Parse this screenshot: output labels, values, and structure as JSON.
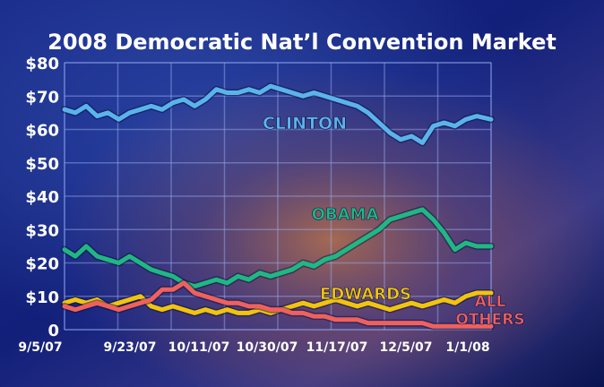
{
  "chart_data": {
    "type": "line",
    "title": "2008 Democratic Nat’l Convention Market",
    "xlabel": "",
    "ylabel": "",
    "ylim": [
      0,
      80
    ],
    "y_ticks": [
      "$80",
      "$70",
      "$60",
      "$50",
      "$40",
      "$30",
      "$20",
      "$10",
      "0"
    ],
    "x_ticks": [
      "9/5/07",
      "9/23/07",
      "10/11/07",
      "10/30/07",
      "11/17/07",
      "12/5/07",
      "1/1/08"
    ],
    "grid": true,
    "series": [
      {
        "name": "CLINTON",
        "color": "#5ab4ec",
        "points": [
          [
            "9/5/07",
            66
          ],
          [
            "9/8/07",
            65
          ],
          [
            "9/11/07",
            67
          ],
          [
            "9/14/07",
            64
          ],
          [
            "9/17/07",
            65
          ],
          [
            "9/20/07",
            63
          ],
          [
            "9/23/07",
            65
          ],
          [
            "9/26/07",
            66
          ],
          [
            "9/29/07",
            67
          ],
          [
            "10/2/07",
            66
          ],
          [
            "10/5/07",
            68
          ],
          [
            "10/8/07",
            69
          ],
          [
            "10/11/07",
            67
          ],
          [
            "10/14/07",
            69
          ],
          [
            "10/17/07",
            72
          ],
          [
            "10/20/07",
            71
          ],
          [
            "10/23/07",
            71
          ],
          [
            "10/26/07",
            72
          ],
          [
            "10/29/07",
            71
          ],
          [
            "11/1/07",
            73
          ],
          [
            "11/4/07",
            72
          ],
          [
            "11/7/07",
            71
          ],
          [
            "11/10/07",
            70
          ],
          [
            "11/13/07",
            71
          ],
          [
            "11/16/07",
            70
          ],
          [
            "11/19/07",
            69
          ],
          [
            "11/22/07",
            68
          ],
          [
            "11/25/07",
            67
          ],
          [
            "11/28/07",
            65
          ],
          [
            "12/1/07",
            62
          ],
          [
            "12/4/07",
            59
          ],
          [
            "12/7/07",
            57
          ],
          [
            "12/10/07",
            58
          ],
          [
            "12/13/07",
            56
          ],
          [
            "12/16/07",
            61
          ],
          [
            "12/19/07",
            62
          ],
          [
            "12/22/07",
            61
          ],
          [
            "12/25/07",
            63
          ],
          [
            "12/28/07",
            64
          ],
          [
            "1/1/08",
            63
          ]
        ]
      },
      {
        "name": "OBAMA",
        "color": "#1fb882",
        "points": [
          [
            "9/5/07",
            24
          ],
          [
            "9/8/07",
            22
          ],
          [
            "9/11/07",
            25
          ],
          [
            "9/14/07",
            22
          ],
          [
            "9/17/07",
            21
          ],
          [
            "9/20/07",
            20
          ],
          [
            "9/23/07",
            22
          ],
          [
            "9/26/07",
            20
          ],
          [
            "9/29/07",
            18
          ],
          [
            "10/2/07",
            17
          ],
          [
            "10/5/07",
            16
          ],
          [
            "10/8/07",
            14
          ],
          [
            "10/11/07",
            13
          ],
          [
            "10/14/07",
            14
          ],
          [
            "10/17/07",
            15
          ],
          [
            "10/20/07",
            14
          ],
          [
            "10/23/07",
            16
          ],
          [
            "10/26/07",
            15
          ],
          [
            "10/29/07",
            17
          ],
          [
            "11/1/07",
            16
          ],
          [
            "11/4/07",
            17
          ],
          [
            "11/7/07",
            18
          ],
          [
            "11/10/07",
            20
          ],
          [
            "11/13/07",
            19
          ],
          [
            "11/16/07",
            21
          ],
          [
            "11/19/07",
            22
          ],
          [
            "11/22/07",
            24
          ],
          [
            "11/25/07",
            26
          ],
          [
            "11/28/07",
            28
          ],
          [
            "12/1/07",
            30
          ],
          [
            "12/4/07",
            33
          ],
          [
            "12/7/07",
            34
          ],
          [
            "12/10/07",
            35
          ],
          [
            "12/13/07",
            36
          ],
          [
            "12/16/07",
            33
          ],
          [
            "12/19/07",
            29
          ],
          [
            "12/22/07",
            24
          ],
          [
            "12/25/07",
            26
          ],
          [
            "12/28/07",
            25
          ],
          [
            "1/1/08",
            25
          ]
        ]
      },
      {
        "name": "EDWARDS",
        "color": "#f2c40c",
        "points": [
          [
            "9/5/07",
            8
          ],
          [
            "9/8/07",
            9
          ],
          [
            "9/11/07",
            8
          ],
          [
            "9/14/07",
            9
          ],
          [
            "9/17/07",
            7
          ],
          [
            "9/20/07",
            8
          ],
          [
            "9/23/07",
            9
          ],
          [
            "9/26/07",
            10
          ],
          [
            "9/29/07",
            7
          ],
          [
            "10/2/07",
            6
          ],
          [
            "10/5/07",
            7
          ],
          [
            "10/8/07",
            6
          ],
          [
            "10/11/07",
            5
          ],
          [
            "10/14/07",
            6
          ],
          [
            "10/17/07",
            5
          ],
          [
            "10/20/07",
            6
          ],
          [
            "10/23/07",
            5
          ],
          [
            "10/26/07",
            5
          ],
          [
            "10/29/07",
            6
          ],
          [
            "11/1/07",
            5
          ],
          [
            "11/4/07",
            6
          ],
          [
            "11/7/07",
            7
          ],
          [
            "11/10/07",
            8
          ],
          [
            "11/13/07",
            7
          ],
          [
            "11/16/07",
            8
          ],
          [
            "11/19/07",
            9
          ],
          [
            "11/22/07",
            8
          ],
          [
            "11/25/07",
            7
          ],
          [
            "11/28/07",
            8
          ],
          [
            "12/1/07",
            7
          ],
          [
            "12/4/07",
            6
          ],
          [
            "12/7/07",
            7
          ],
          [
            "12/10/07",
            8
          ],
          [
            "12/13/07",
            7
          ],
          [
            "12/16/07",
            8
          ],
          [
            "12/19/07",
            9
          ],
          [
            "12/22/07",
            8
          ],
          [
            "12/25/07",
            10
          ],
          [
            "12/28/07",
            11
          ],
          [
            "1/1/08",
            11
          ]
        ]
      },
      {
        "name": "ALL OTHERS",
        "label_lines": [
          "ALL",
          "OTHERS"
        ],
        "color": "#f0605c",
        "points": [
          [
            "9/5/07",
            7
          ],
          [
            "9/8/07",
            6
          ],
          [
            "9/11/07",
            7
          ],
          [
            "9/14/07",
            8
          ],
          [
            "9/17/07",
            7
          ],
          [
            "9/20/07",
            6
          ],
          [
            "9/23/07",
            7
          ],
          [
            "9/26/07",
            8
          ],
          [
            "9/29/07",
            9
          ],
          [
            "10/2/07",
            12
          ],
          [
            "10/5/07",
            12
          ],
          [
            "10/8/07",
            14
          ],
          [
            "10/11/07",
            11
          ],
          [
            "10/14/07",
            10
          ],
          [
            "10/17/07",
            9
          ],
          [
            "10/20/07",
            8
          ],
          [
            "10/23/07",
            8
          ],
          [
            "10/26/07",
            7
          ],
          [
            "10/29/07",
            7
          ],
          [
            "11/1/07",
            6
          ],
          [
            "11/4/07",
            6
          ],
          [
            "11/7/07",
            5
          ],
          [
            "11/10/07",
            5
          ],
          [
            "11/13/07",
            4
          ],
          [
            "11/16/07",
            4
          ],
          [
            "11/19/07",
            3
          ],
          [
            "11/22/07",
            3
          ],
          [
            "11/25/07",
            3
          ],
          [
            "11/28/07",
            2
          ],
          [
            "12/1/07",
            2
          ],
          [
            "12/4/07",
            2
          ],
          [
            "12/7/07",
            2
          ],
          [
            "12/10/07",
            2
          ],
          [
            "12/13/07",
            2
          ],
          [
            "12/16/07",
            1
          ],
          [
            "12/19/07",
            1
          ],
          [
            "12/22/07",
            1
          ],
          [
            "12/25/07",
            1
          ],
          [
            "12/28/07",
            1
          ],
          [
            "1/1/08",
            1
          ]
        ]
      }
    ]
  }
}
